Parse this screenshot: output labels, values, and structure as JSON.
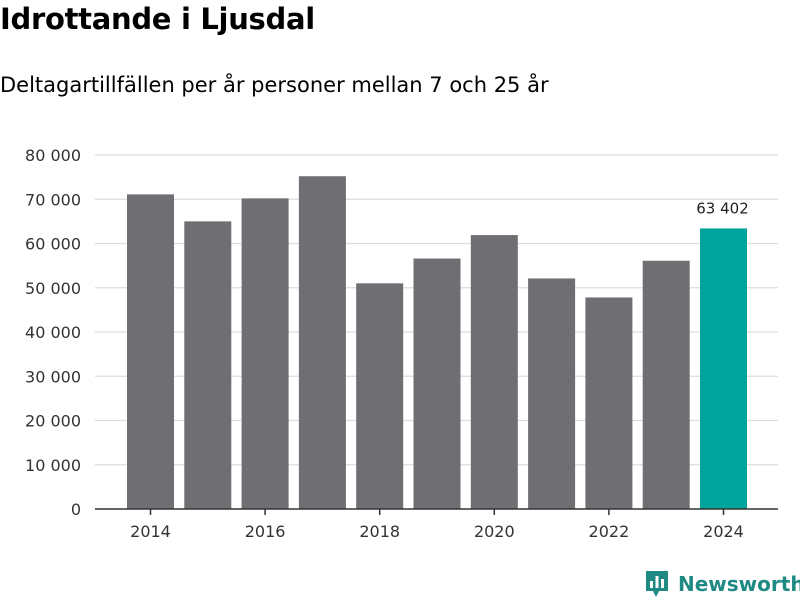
{
  "header": {
    "title": "Idrottande i Ljusdal",
    "subtitle": "Deltagartillfällen per år personer mellan 7 och 25 år"
  },
  "chart_data": {
    "type": "bar",
    "title": "Idrottande i Ljusdal",
    "subtitle": "Deltagartillfällen per år personer mellan 7 och 25 år",
    "xlabel": "",
    "ylabel": "",
    "categories": [
      "2014",
      "2015",
      "2016",
      "2017",
      "2018",
      "2019",
      "2020",
      "2021",
      "2022",
      "2023",
      "2024"
    ],
    "values": [
      71100,
      65000,
      70200,
      75200,
      51000,
      56600,
      61900,
      52100,
      47800,
      56100,
      63402
    ],
    "ylim": [
      0,
      80000
    ],
    "y_ticks": [
      0,
      10000,
      20000,
      30000,
      40000,
      50000,
      60000,
      70000,
      80000
    ],
    "y_tick_labels": [
      "0",
      "10 000",
      "20 000",
      "30 000",
      "40 000",
      "50 000",
      "60 000",
      "70 000",
      "80 000"
    ],
    "x_tick_labels": [
      "2014",
      "2016",
      "2018",
      "2020",
      "2022",
      "2024"
    ],
    "highlight_index": 10,
    "highlight_label": "63 402",
    "grid": true,
    "legend": "none"
  },
  "colors": {
    "bar": "#6e6e73",
    "highlight": "#00a49a",
    "grid": "#dddddd",
    "axis": "#333333",
    "text": "#333333",
    "brand": "#1f8a84"
  },
  "branding": {
    "logo_text": "Newsworthy",
    "logo_icon": "newsworthy-chart-icon"
  }
}
